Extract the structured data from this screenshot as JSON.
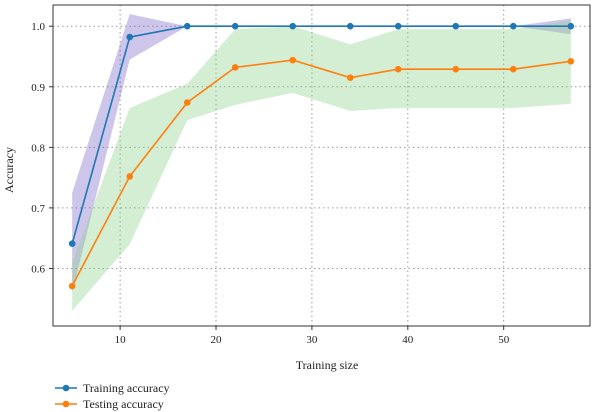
{
  "chart_data": {
    "type": "line",
    "xlabel": "Training size",
    "ylabel": "Accuracy",
    "xlim": [
      3,
      59
    ],
    "ylim": [
      0.505,
      1.035
    ],
    "xticks": [
      10,
      20,
      30,
      40,
      50
    ],
    "yticks": [
      0.6,
      0.7,
      0.8,
      0.9,
      1.0
    ],
    "xtick_labels": [
      "10",
      "20",
      "30",
      "40",
      "50"
    ],
    "ytick_labels": [
      "0.6",
      "0.7",
      "0.8",
      "0.9",
      "1.0"
    ],
    "grid": true,
    "legend_position": "bottom-left-outside",
    "x": [
      5,
      11,
      17,
      22,
      28,
      34,
      39,
      45,
      51,
      57
    ],
    "series": [
      {
        "name": "Training accuracy",
        "color": "#1f77b4",
        "band_color": "#7b68c8",
        "values": [
          0.641,
          0.982,
          1.0,
          1.0,
          1.0,
          1.0,
          1.0,
          1.0,
          1.0,
          1.0
        ],
        "band_upper": [
          0.725,
          1.02,
          1.0,
          1.0,
          1.0,
          1.0,
          1.0,
          1.0,
          1.0,
          1.013
        ],
        "band_lower": [
          0.56,
          0.945,
          1.0,
          1.0,
          1.0,
          1.0,
          1.0,
          1.0,
          1.0,
          0.987
        ]
      },
      {
        "name": "Testing accuracy",
        "color": "#ff7f0e",
        "band_color": "#8fd18f",
        "values": [
          0.571,
          0.752,
          0.874,
          0.932,
          0.944,
          0.915,
          0.929,
          0.929,
          0.929,
          0.942
        ],
        "band_upper": [
          0.61,
          0.865,
          0.905,
          0.995,
          1.0,
          0.97,
          0.995,
          0.995,
          0.995,
          1.01
        ],
        "band_lower": [
          0.53,
          0.64,
          0.845,
          0.87,
          0.89,
          0.86,
          0.865,
          0.865,
          0.865,
          0.872
        ]
      }
    ]
  }
}
